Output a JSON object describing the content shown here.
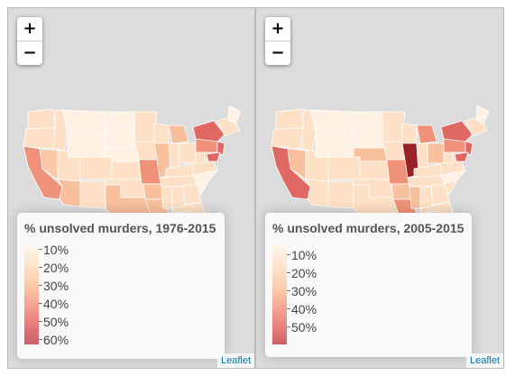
{
  "zoom": {
    "in_label": "+",
    "out_label": "−"
  },
  "attribution": "Leaflet",
  "maps": [
    {
      "legend_title": "% unsolved murders, 1976-2015",
      "legend_ticks": [
        "10%",
        "20%",
        "30%",
        "40%",
        "50%",
        "60%"
      ],
      "ramp": [
        "#fff5eb",
        "#fde2c7",
        "#fbc9a9",
        "#f4a290",
        "#e77a7a",
        "#c9606a"
      ]
    },
    {
      "legend_title": "% unsolved murders, 2005-2015",
      "legend_ticks": [
        "10%",
        "20%",
        "30%",
        "40%",
        "50%"
      ],
      "ramp": [
        "#fff5eb",
        "#fde2c7",
        "#fbc9a9",
        "#f4a290",
        "#e77a7a",
        "#c9606a"
      ]
    }
  ],
  "colors": {
    "map_background": "#dcdcdc",
    "lightest": "#fff1e4",
    "light": "#fde0c5",
    "mid": "#f9c09e",
    "high": "#f09279",
    "higher": "#e06862",
    "highest": "#9a2028"
  }
}
